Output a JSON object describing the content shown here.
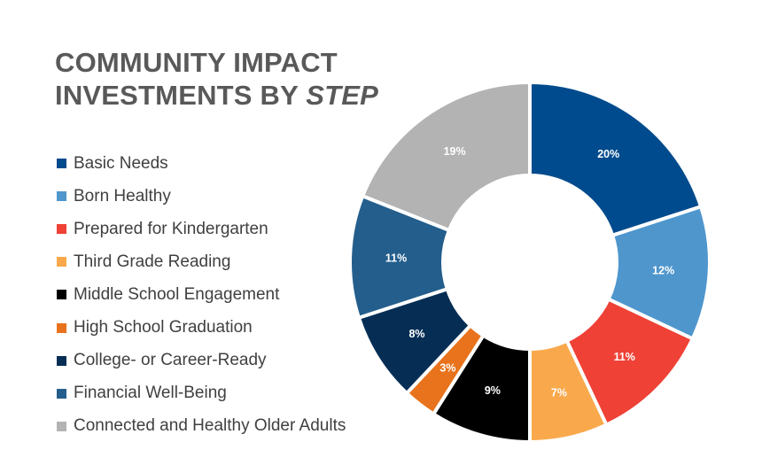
{
  "title": {
    "line1": "COMMUNITY IMPACT",
    "line2_prefix": "INVESTMENTS BY",
    "line2_emphasis": "STEP"
  },
  "chart_data": {
    "type": "pie",
    "donut": true,
    "title": "COMMUNITY IMPACT INVESTMENTS BY STEP",
    "legend_position": "left",
    "categories": [
      "Basic Needs",
      "Born Healthy",
      "Prepared for Kindergarten",
      "Third Grade Reading",
      "Middle School Engagement",
      "High School Graduation",
      "College- or Career-Ready",
      "Financial Well-Being",
      "Connected and Healthy Older Adults"
    ],
    "values": [
      20,
      12,
      11,
      7,
      9,
      3,
      8,
      11,
      19
    ],
    "labels": [
      "20%",
      "12%",
      "11%",
      "7%",
      "9%",
      "3%",
      "8%",
      "11%",
      "19%"
    ],
    "colors": [
      "#004b8d",
      "#4f96cd",
      "#ef4136",
      "#f9a94b",
      "#000000",
      "#e8731c",
      "#062e55",
      "#245e8c",
      "#b3b3b3"
    ]
  }
}
